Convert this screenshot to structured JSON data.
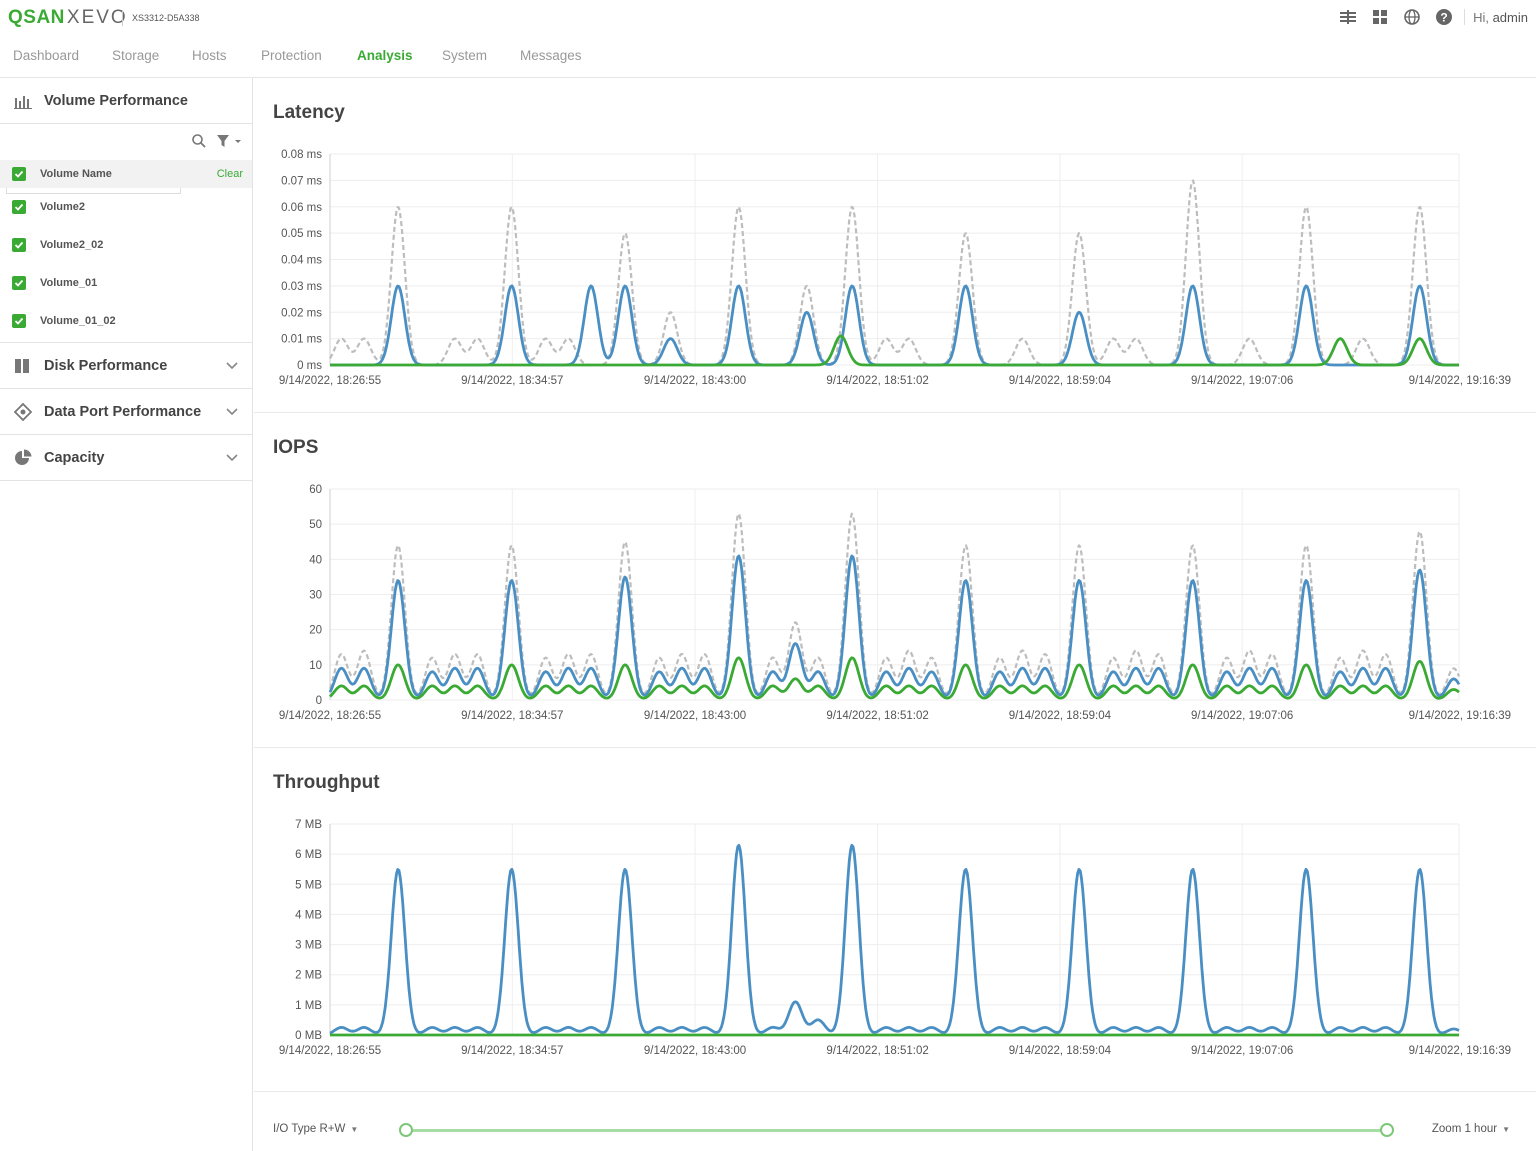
{
  "header": {
    "brand": "QSAN",
    "product": "XEVO",
    "model": "XS3312-D5A338",
    "greeting_prefix": "Hi,",
    "user": "admin"
  },
  "nav": {
    "tabs": [
      "Dashboard",
      "Storage",
      "Hosts",
      "Protection",
      "Analysis",
      "System",
      "Messages"
    ],
    "active": "Analysis"
  },
  "sidebar": {
    "volume_performance": "Volume Performance",
    "search": {
      "value": ""
    },
    "volume_header": "Volume Name",
    "clear_label": "Clear",
    "volumes": [
      "Volume2",
      "Volume2_02",
      "Volume_01",
      "Volume_01_02"
    ],
    "sections": [
      "Disk Performance",
      "Data Port Performance",
      "Capacity"
    ]
  },
  "colors": {
    "accent": "#3aaa35",
    "series_blue": "#4a8fc4",
    "series_gray": "#bdbdbd",
    "series_green": "#3aaa35"
  },
  "chart_data": [
    {
      "type": "line",
      "title": "Latency",
      "unit": "ms",
      "ylim": [
        0,
        0.08
      ],
      "yticks": [
        0,
        0.01,
        0.02,
        0.03,
        0.04,
        0.05,
        0.06,
        0.07,
        0.08
      ],
      "ytick_labels": [
        "0 ms",
        "0.01 ms",
        "0.02 ms",
        "0.03 ms",
        "0.04 ms",
        "0.05 ms",
        "0.06 ms",
        "0.07 ms",
        "0.08 ms"
      ],
      "xlim_minutes": [
        0,
        49.73
      ],
      "xtick_minutes": [
        0,
        8.03,
        16.08,
        24.12,
        32.15,
        40.18,
        49.73
      ],
      "xtick_labels": [
        "9/14/2022, 18:26:55",
        "9/14/2022, 18:34:57",
        "9/14/2022, 18:43:00",
        "9/14/2022, 18:51:02",
        "9/14/2022, 18:59:04",
        "9/14/2022, 19:07:06",
        "9/14/2022, 19:16:39"
      ],
      "series": [
        {
          "color": "gray",
          "dashed": true,
          "peaks": [
            [
              0.5,
              0.01
            ],
            [
              1.5,
              0.01
            ],
            [
              3.0,
              0.06
            ],
            [
              5.5,
              0.01
            ],
            [
              6.5,
              0.01
            ],
            [
              8.0,
              0.06
            ],
            [
              9.5,
              0.01
            ],
            [
              10.5,
              0.01
            ],
            [
              13.0,
              0.05
            ],
            [
              15.0,
              0.02
            ],
            [
              18.0,
              0.06
            ],
            [
              21.0,
              0.03
            ],
            [
              23.0,
              0.06
            ],
            [
              24.5,
              0.01
            ],
            [
              25.5,
              0.01
            ],
            [
              28.0,
              0.05
            ],
            [
              30.5,
              0.01
            ],
            [
              33.0,
              0.05
            ],
            [
              34.5,
              0.01
            ],
            [
              35.5,
              0.01
            ],
            [
              38.0,
              0.07
            ],
            [
              40.5,
              0.01
            ],
            [
              43.0,
              0.06
            ],
            [
              45.5,
              0.01
            ],
            [
              48.0,
              0.06
            ]
          ]
        },
        {
          "color": "blue",
          "dashed": false,
          "peaks": [
            [
              3.0,
              0.03
            ],
            [
              8.0,
              0.03
            ],
            [
              11.5,
              0.03
            ],
            [
              13.0,
              0.03
            ],
            [
              15.0,
              0.01
            ],
            [
              18.0,
              0.03
            ],
            [
              21.0,
              0.02
            ],
            [
              23.0,
              0.03
            ],
            [
              28.0,
              0.03
            ],
            [
              33.0,
              0.02
            ],
            [
              38.0,
              0.03
            ],
            [
              43.0,
              0.03
            ],
            [
              48.0,
              0.03
            ]
          ]
        },
        {
          "color": "green",
          "dashed": false,
          "peaks": [
            [
              22.5,
              0.011
            ],
            [
              44.5,
              0.01
            ],
            [
              48.0,
              0.01
            ]
          ]
        }
      ]
    },
    {
      "type": "line",
      "title": "IOPS",
      "unit": "",
      "ylim": [
        0,
        60
      ],
      "yticks": [
        0,
        10,
        20,
        30,
        40,
        50,
        60
      ],
      "ytick_labels": [
        "0",
        "10",
        "20",
        "30",
        "40",
        "50",
        "60"
      ],
      "xlim_minutes": [
        0,
        49.73
      ],
      "xtick_minutes": [
        0,
        8.03,
        16.08,
        24.12,
        32.15,
        40.18,
        49.73
      ],
      "xtick_labels": [
        "9/14/2022, 18:26:55",
        "9/14/2022, 18:34:57",
        "9/14/2022, 18:43:00",
        "9/14/2022, 18:51:02",
        "9/14/2022, 18:59:04",
        "9/14/2022, 19:07:06",
        "9/14/2022, 19:16:39"
      ],
      "series": [
        {
          "color": "gray",
          "dashed": true,
          "peaks": [
            [
              0.5,
              13
            ],
            [
              1.5,
              14
            ],
            [
              3.0,
              44
            ],
            [
              4.5,
              12
            ],
            [
              5.5,
              13
            ],
            [
              6.5,
              13
            ],
            [
              8.0,
              44
            ],
            [
              9.5,
              12
            ],
            [
              10.5,
              13
            ],
            [
              11.5,
              13
            ],
            [
              13.0,
              45
            ],
            [
              14.5,
              12
            ],
            [
              15.5,
              13
            ],
            [
              16.5,
              13
            ],
            [
              18.0,
              53
            ],
            [
              19.5,
              12
            ],
            [
              20.5,
              22
            ],
            [
              21.5,
              12
            ],
            [
              23.0,
              53
            ],
            [
              24.5,
              12
            ],
            [
              25.5,
              14
            ],
            [
              26.5,
              12
            ],
            [
              28.0,
              44
            ],
            [
              29.5,
              12
            ],
            [
              30.5,
              14
            ],
            [
              31.5,
              13
            ],
            [
              33.0,
              44
            ],
            [
              34.5,
              12
            ],
            [
              35.5,
              14
            ],
            [
              36.5,
              13
            ],
            [
              38.0,
              44
            ],
            [
              39.5,
              12
            ],
            [
              40.5,
              14
            ],
            [
              41.5,
              13
            ],
            [
              43.0,
              44
            ],
            [
              44.5,
              12
            ],
            [
              45.5,
              14
            ],
            [
              46.5,
              13
            ],
            [
              48.0,
              48
            ],
            [
              49.5,
              9
            ]
          ]
        },
        {
          "color": "blue",
          "dashed": false,
          "peaks": [
            [
              0.5,
              9
            ],
            [
              1.5,
              9
            ],
            [
              3.0,
              34
            ],
            [
              4.5,
              8
            ],
            [
              5.5,
              9
            ],
            [
              6.5,
              9
            ],
            [
              8.0,
              34
            ],
            [
              9.5,
              8
            ],
            [
              10.5,
              9
            ],
            [
              11.5,
              9
            ],
            [
              13.0,
              35
            ],
            [
              14.5,
              8
            ],
            [
              15.5,
              9
            ],
            [
              16.5,
              9
            ],
            [
              18.0,
              41
            ],
            [
              19.5,
              8
            ],
            [
              20.5,
              16
            ],
            [
              21.5,
              8
            ],
            [
              23.0,
              41
            ],
            [
              24.5,
              8
            ],
            [
              25.5,
              9
            ],
            [
              26.5,
              8
            ],
            [
              28.0,
              34
            ],
            [
              29.5,
              8
            ],
            [
              30.5,
              9
            ],
            [
              31.5,
              9
            ],
            [
              33.0,
              34
            ],
            [
              34.5,
              8
            ],
            [
              35.5,
              9
            ],
            [
              36.5,
              9
            ],
            [
              38.0,
              34
            ],
            [
              39.5,
              8
            ],
            [
              40.5,
              9
            ],
            [
              41.5,
              9
            ],
            [
              43.0,
              34
            ],
            [
              44.5,
              8
            ],
            [
              45.5,
              9
            ],
            [
              46.5,
              9
            ],
            [
              48.0,
              37
            ],
            [
              49.5,
              6
            ]
          ]
        },
        {
          "color": "green",
          "dashed": false,
          "peaks": [
            [
              0.5,
              4
            ],
            [
              1.5,
              4
            ],
            [
              3.0,
              10
            ],
            [
              4.5,
              4
            ],
            [
              5.5,
              4
            ],
            [
              6.5,
              4
            ],
            [
              8.0,
              10
            ],
            [
              9.5,
              4
            ],
            [
              10.5,
              4
            ],
            [
              11.5,
              4
            ],
            [
              13.0,
              10
            ],
            [
              14.5,
              4
            ],
            [
              15.5,
              4
            ],
            [
              16.5,
              4
            ],
            [
              18.0,
              12
            ],
            [
              19.5,
              4
            ],
            [
              20.5,
              6
            ],
            [
              21.5,
              4
            ],
            [
              23.0,
              12
            ],
            [
              24.5,
              4
            ],
            [
              25.5,
              4
            ],
            [
              26.5,
              4
            ],
            [
              28.0,
              10
            ],
            [
              29.5,
              4
            ],
            [
              30.5,
              4
            ],
            [
              31.5,
              4
            ],
            [
              33.0,
              10
            ],
            [
              34.5,
              4
            ],
            [
              35.5,
              4
            ],
            [
              36.5,
              4
            ],
            [
              38.0,
              10
            ],
            [
              39.5,
              4
            ],
            [
              40.5,
              4
            ],
            [
              41.5,
              4
            ],
            [
              43.0,
              10
            ],
            [
              44.5,
              4
            ],
            [
              45.5,
              4
            ],
            [
              46.5,
              4
            ],
            [
              48.0,
              11
            ],
            [
              49.5,
              3
            ]
          ]
        }
      ]
    },
    {
      "type": "line",
      "title": "Throughput",
      "unit": "MB",
      "ylim": [
        0,
        7
      ],
      "yticks": [
        0,
        1,
        2,
        3,
        4,
        5,
        6,
        7
      ],
      "ytick_labels": [
        "0 MB",
        "1 MB",
        "2 MB",
        "3 MB",
        "4 MB",
        "5 MB",
        "6 MB",
        "7 MB"
      ],
      "xlim_minutes": [
        0,
        49.73
      ],
      "xtick_minutes": [
        0,
        8.03,
        16.08,
        24.12,
        32.15,
        40.18,
        49.73
      ],
      "xtick_labels": [
        "9/14/2022, 18:26:55",
        "9/14/2022, 18:34:57",
        "9/14/2022, 18:43:00",
        "9/14/2022, 18:51:02",
        "9/14/2022, 18:59:04",
        "9/14/2022, 19:07:06",
        "9/14/2022, 19:16:39"
      ],
      "series": [
        {
          "color": "blue",
          "dashed": false,
          "peaks": [
            [
              0.5,
              0.25
            ],
            [
              1.5,
              0.25
            ],
            [
              3.0,
              5.5
            ],
            [
              4.5,
              0.25
            ],
            [
              5.5,
              0.25
            ],
            [
              6.5,
              0.25
            ],
            [
              8.0,
              5.5
            ],
            [
              9.5,
              0.25
            ],
            [
              10.5,
              0.25
            ],
            [
              11.5,
              0.25
            ],
            [
              13.0,
              5.5
            ],
            [
              14.5,
              0.25
            ],
            [
              15.5,
              0.25
            ],
            [
              16.5,
              0.25
            ],
            [
              18.0,
              6.3
            ],
            [
              19.5,
              0.25
            ],
            [
              20.5,
              1.1
            ],
            [
              21.5,
              0.5
            ],
            [
              23.0,
              6.3
            ],
            [
              24.5,
              0.25
            ],
            [
              25.5,
              0.25
            ],
            [
              26.5,
              0.25
            ],
            [
              28.0,
              5.5
            ],
            [
              29.5,
              0.25
            ],
            [
              30.5,
              0.25
            ],
            [
              31.5,
              0.25
            ],
            [
              33.0,
              5.5
            ],
            [
              34.5,
              0.25
            ],
            [
              35.5,
              0.25
            ],
            [
              36.5,
              0.25
            ],
            [
              38.0,
              5.5
            ],
            [
              39.5,
              0.25
            ],
            [
              40.5,
              0.25
            ],
            [
              41.5,
              0.25
            ],
            [
              43.0,
              5.5
            ],
            [
              44.5,
              0.25
            ],
            [
              45.5,
              0.25
            ],
            [
              46.5,
              0.25
            ],
            [
              48.0,
              5.5
            ],
            [
              49.5,
              0.2
            ]
          ]
        },
        {
          "color": "green",
          "dashed": false,
          "peaks": []
        }
      ]
    }
  ],
  "controls": {
    "io_type_label": "I/O Type R+W",
    "zoom_label": "Zoom 1 hour"
  }
}
